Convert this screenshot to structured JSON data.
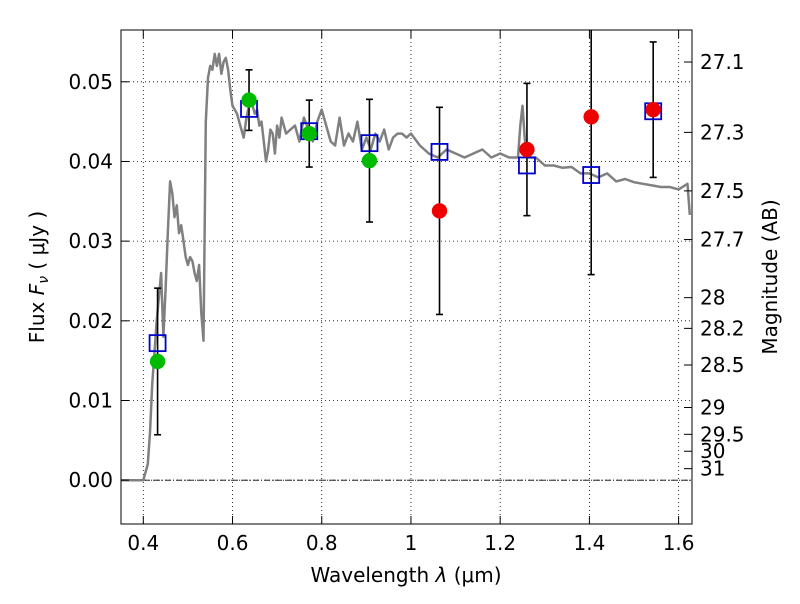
{
  "chart_data": {
    "type": "scatter",
    "xlabel_text": "Wavelength",
    "xlabel_symbol": "λ",
    "xlabel_unit": "(μm)",
    "ylabel_text": "Flux",
    "ylabel_symbol": "F",
    "ylabel_sub": "ν",
    "ylabel_unit": "( μJy )",
    "y2label": "Magnitude (AB)",
    "xlim": [
      0.35,
      1.63
    ],
    "ylim": [
      -0.0055,
      0.0565
    ],
    "grid": true,
    "x_ticks": [
      0.4,
      0.6,
      0.8,
      1.0,
      1.2,
      1.4,
      1.6
    ],
    "x_tick_labels": [
      "0.4",
      "0.6",
      "0.8",
      "1",
      "1.2",
      "1.4",
      "1.6"
    ],
    "y_ticks": [
      0.0,
      0.01,
      0.02,
      0.03,
      0.04,
      0.05
    ],
    "y_tick_labels": [
      "0.00",
      "0.01",
      "0.02",
      "0.03",
      "0.04",
      "0.05"
    ],
    "mag_ticks": [
      27.1,
      27.3,
      27.5,
      27.7,
      28,
      28.2,
      28.5,
      29,
      29.5,
      30,
      31
    ],
    "mag_tick_labels": [
      "27.1",
      "27.3",
      "27.5",
      "27.7",
      "28",
      "28.2",
      "28.5",
      "29",
      "29.5",
      "30",
      "31"
    ],
    "colors": {
      "model": "#808080",
      "synthetic": "#0000cc",
      "green_points": "#00bb00",
      "red_points": "#ee0000",
      "errorbars": "#000000"
    },
    "series": [
      {
        "marker": "line",
        "x": [
          0.35,
          0.395,
          0.4,
          0.41,
          0.415,
          0.42,
          0.43,
          0.44,
          0.445,
          0.45,
          0.455,
          0.46,
          0.465,
          0.47,
          0.475,
          0.48,
          0.485,
          0.49,
          0.495,
          0.5,
          0.505,
          0.51,
          0.515,
          0.52,
          0.525,
          0.53,
          0.535,
          0.54,
          0.545,
          0.55,
          0.555,
          0.56,
          0.565,
          0.57,
          0.575,
          0.58,
          0.585,
          0.59,
          0.595,
          0.6,
          0.61,
          0.62,
          0.625,
          0.63,
          0.635,
          0.64,
          0.645,
          0.65,
          0.655,
          0.66,
          0.665,
          0.67,
          0.675,
          0.68,
          0.685,
          0.69,
          0.695,
          0.7,
          0.705,
          0.71,
          0.72,
          0.73,
          0.74,
          0.75,
          0.76,
          0.77,
          0.78,
          0.79,
          0.8,
          0.81,
          0.82,
          0.83,
          0.84,
          0.85,
          0.86,
          0.87,
          0.88,
          0.89,
          0.9,
          0.91,
          0.92,
          0.93,
          0.94,
          0.95,
          0.96,
          0.97,
          0.98,
          0.99,
          1.0,
          1.02,
          1.04,
          1.06,
          1.08,
          1.1,
          1.12,
          1.14,
          1.16,
          1.18,
          1.2,
          1.22,
          1.24,
          1.245,
          1.25,
          1.255,
          1.26,
          1.28,
          1.3,
          1.32,
          1.34,
          1.36,
          1.38,
          1.4,
          1.42,
          1.44,
          1.46,
          1.48,
          1.5,
          1.52,
          1.54,
          1.56,
          1.58,
          1.6,
          1.62,
          1.625
        ],
        "y": [
          0.0,
          0.0,
          0.0,
          0.002,
          0.006,
          0.012,
          0.02,
          0.026,
          0.018,
          0.024,
          0.031,
          0.0375,
          0.036,
          0.033,
          0.0345,
          0.031,
          0.032,
          0.03,
          0.028,
          0.027,
          0.028,
          0.0275,
          0.026,
          0.025,
          0.027,
          0.021,
          0.0175,
          0.045,
          0.0505,
          0.052,
          0.0515,
          0.0535,
          0.052,
          0.0535,
          0.051,
          0.0525,
          0.053,
          0.0515,
          0.049,
          0.047,
          0.046,
          0.044,
          0.043,
          0.045,
          0.0465,
          0.0475,
          0.047,
          0.046,
          0.0465,
          0.0445,
          0.045,
          0.0425,
          0.04,
          0.0415,
          0.044,
          0.0435,
          0.041,
          0.0445,
          0.043,
          0.0455,
          0.0435,
          0.044,
          0.0445,
          0.0425,
          0.0455,
          0.044,
          0.0425,
          0.045,
          0.0465,
          0.0445,
          0.0425,
          0.042,
          0.0455,
          0.042,
          0.0435,
          0.0425,
          0.045,
          0.0415,
          0.043,
          0.0415,
          0.0435,
          0.0425,
          0.044,
          0.0415,
          0.043,
          0.0435,
          0.0435,
          0.043,
          0.0435,
          0.042,
          0.041,
          0.0405,
          0.0415,
          0.041,
          0.0405,
          0.041,
          0.0415,
          0.0405,
          0.041,
          0.0405,
          0.0405,
          0.0445,
          0.047,
          0.043,
          0.0405,
          0.0405,
          0.0395,
          0.0395,
          0.0392,
          0.0393,
          0.0385,
          0.0385,
          0.038,
          0.0385,
          0.0375,
          0.0378,
          0.0374,
          0.0372,
          0.037,
          0.0368,
          0.0368,
          0.0365,
          0.0372,
          0.0333
        ]
      },
      {
        "marker": "open-square",
        "x": [
          0.432,
          0.637,
          0.772,
          0.907,
          1.064,
          1.26,
          1.404,
          1.543
        ],
        "y": [
          0.0172,
          0.0466,
          0.0438,
          0.0423,
          0.0412,
          0.0395,
          0.0383,
          0.0463
        ]
      },
      {
        "marker": "filled-circle-green",
        "x": [
          0.432,
          0.637,
          0.772,
          0.907
        ],
        "y": [
          0.0149,
          0.0477,
          0.0435,
          0.0401
        ],
        "yerr": [
          0.0092,
          0.0038,
          0.0042,
          0.0077
        ]
      },
      {
        "marker": "filled-circle-red",
        "x": [
          1.064,
          1.26,
          1.404,
          1.543
        ],
        "y": [
          0.0338,
          0.0415,
          0.0456,
          0.0465
        ],
        "yerr": [
          0.013,
          0.0083,
          0.0198,
          0.0085
        ]
      }
    ]
  }
}
